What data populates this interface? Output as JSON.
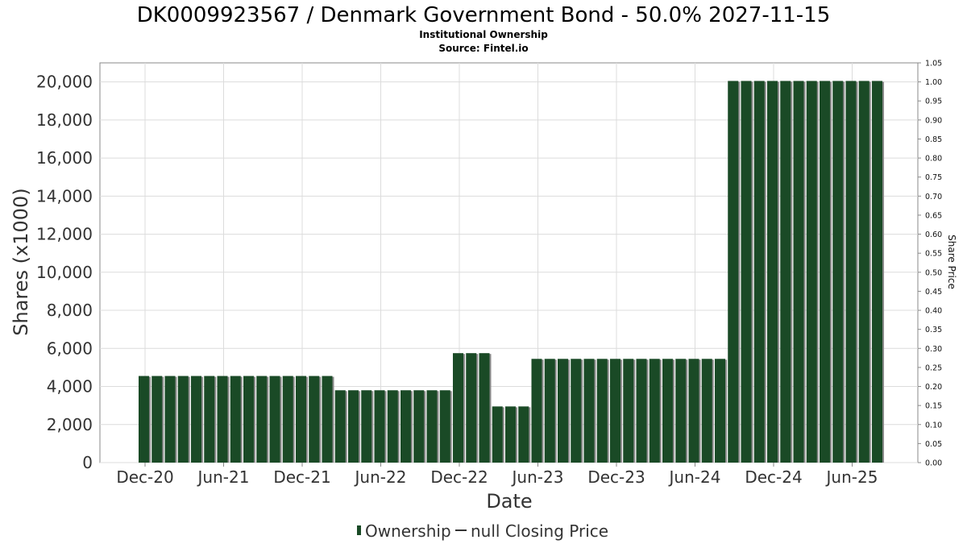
{
  "chart_data": {
    "type": "bar",
    "title": "DK0009923567 / Denmark Government Bond - 50.0% 2027-11-15",
    "subtitle_lines": [
      "Institutional Ownership",
      "Source: Fintel.io"
    ],
    "xlabel": "Date",
    "ylabel": "Shares (x1000)",
    "y2label": "Share Price",
    "ylim": [
      0,
      21000
    ],
    "y2lim": [
      0,
      1.05
    ],
    "y_ticks": [
      "0",
      "2,000",
      "4,000",
      "6,000",
      "8,000",
      "10,000",
      "12,000",
      "14,000",
      "16,000",
      "18,000",
      "20,000"
    ],
    "y_tick_values": [
      0,
      2000,
      4000,
      6000,
      8000,
      10000,
      12000,
      14000,
      16000,
      18000,
      20000
    ],
    "y2_ticks": [
      "0.00",
      "0.05",
      "0.10",
      "0.15",
      "0.20",
      "0.25",
      "0.30",
      "0.35",
      "0.40",
      "0.45",
      "0.50",
      "0.55",
      "0.60",
      "0.65",
      "0.70",
      "0.75",
      "0.80",
      "0.85",
      "0.90",
      "0.95",
      "1.00",
      "1.05"
    ],
    "x_ticks": [
      "Dec-20",
      "Jun-21",
      "Dec-21",
      "Jun-22",
      "Dec-22",
      "Jun-23",
      "Dec-23",
      "Jun-24",
      "Dec-24",
      "Jun-25"
    ],
    "grid": true,
    "legend_position": "bottom",
    "series": [
      {
        "name": "Ownership",
        "color": "#1a4a26",
        "values": [
          4550,
          4550,
          4550,
          4550,
          4550,
          4550,
          4550,
          4550,
          4550,
          4550,
          4550,
          4550,
          4550,
          4550,
          4550,
          3800,
          3800,
          3800,
          3800,
          3800,
          3800,
          3800,
          3800,
          3800,
          5750,
          5750,
          5750,
          2950,
          2950,
          2950,
          5450,
          5450,
          5450,
          5450,
          5450,
          5450,
          5450,
          5450,
          5450,
          5450,
          5450,
          5450,
          5450,
          5450,
          5450,
          20050,
          20050,
          20050,
          20050,
          20050,
          20050,
          20050,
          20050,
          20050,
          20050,
          20050,
          20050
        ]
      },
      {
        "name": "null Closing Price",
        "values": []
      }
    ]
  }
}
